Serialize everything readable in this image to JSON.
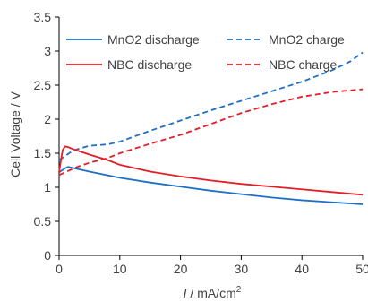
{
  "chart_data": {
    "type": "line",
    "title": "",
    "xlabel_italic": "I",
    "xlabel_rest": " / mA/cm",
    "xlabel_sup": "2",
    "ylabel": "Cell Voltage  / V",
    "xlim": [
      0,
      50
    ],
    "ylim": [
      0,
      3.5
    ],
    "x_ticks": [
      "0",
      "10",
      "20",
      "30",
      "40",
      "50"
    ],
    "x_tick_values": [
      0,
      10,
      20,
      30,
      40,
      50
    ],
    "y_ticks": [
      "0",
      "0.5",
      "1",
      "1.5",
      "2",
      "2.5",
      "3",
      "3.5"
    ],
    "y_tick_values": [
      0,
      0.5,
      1,
      1.5,
      2,
      2.5,
      3,
      3.5
    ],
    "grid": false,
    "legend_position": "top",
    "series": [
      {
        "name": "MnO2 discharge",
        "color": "#1f6fc5",
        "dash": "solid",
        "x": [
          0,
          0.5,
          1,
          1.5,
          2,
          3,
          5,
          10,
          15,
          20,
          25,
          30,
          35,
          40,
          45,
          50
        ],
        "y": [
          1.22,
          1.25,
          1.28,
          1.3,
          1.29,
          1.27,
          1.23,
          1.14,
          1.07,
          1.01,
          0.95,
          0.9,
          0.85,
          0.81,
          0.78,
          0.75
        ]
      },
      {
        "name": "MnO2 charge",
        "color": "#1f6fc5",
        "dash": "dashed",
        "x": [
          0,
          1,
          2,
          3,
          5,
          8,
          10,
          15,
          20,
          25,
          30,
          35,
          40,
          45,
          48,
          50
        ],
        "y": [
          1.4,
          1.46,
          1.52,
          1.56,
          1.61,
          1.63,
          1.67,
          1.83,
          1.98,
          2.13,
          2.27,
          2.41,
          2.55,
          2.72,
          2.85,
          2.98
        ]
      },
      {
        "name": "NBC discharge",
        "color": "#e41e26",
        "dash": "solid",
        "x": [
          0,
          0.3,
          0.6,
          1,
          1.5,
          2,
          3,
          5,
          8,
          10,
          15,
          20,
          25,
          30,
          35,
          40,
          45,
          50
        ],
        "y": [
          1.22,
          1.4,
          1.55,
          1.6,
          1.59,
          1.57,
          1.54,
          1.48,
          1.4,
          1.33,
          1.23,
          1.16,
          1.1,
          1.05,
          1.01,
          0.97,
          0.93,
          0.89
        ]
      },
      {
        "name": "NBC charge",
        "color": "#e41e26",
        "dash": "dashed",
        "x": [
          0,
          1,
          2,
          3,
          5,
          8,
          10,
          15,
          20,
          25,
          30,
          35,
          40,
          45,
          50
        ],
        "y": [
          1.18,
          1.22,
          1.26,
          1.3,
          1.36,
          1.43,
          1.5,
          1.64,
          1.77,
          1.93,
          2.09,
          2.22,
          2.33,
          2.4,
          2.44
        ]
      }
    ]
  }
}
